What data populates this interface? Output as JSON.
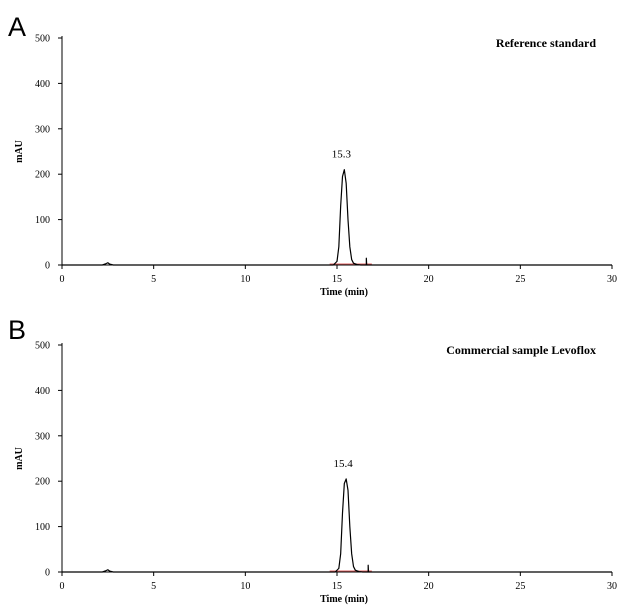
{
  "colors": {
    "trace": "#000000",
    "baseline": "#e06060",
    "axis": "#000000"
  },
  "panels": [
    {
      "letter": "A"
    },
    {
      "letter": "B"
    }
  ],
  "chart_data": [
    {
      "type": "line",
      "panel": "A",
      "title": "Reference standard",
      "xlabel": "Time (min)",
      "ylabel": "mAU",
      "xlim": [
        0,
        30
      ],
      "ylim": [
        0,
        500
      ],
      "xticks": [
        0,
        5,
        10,
        15,
        20,
        25,
        30
      ],
      "yticks": [
        0,
        100,
        200,
        300,
        400,
        500
      ],
      "peak_label": "15.3",
      "series": [
        {
          "x": [
            0,
            2.2,
            2.4,
            2.5,
            2.6,
            2.8,
            14.8,
            15.0,
            15.1,
            15.2,
            15.3,
            15.4,
            15.5,
            15.6,
            15.7,
            15.8,
            15.9,
            16.1,
            16.3,
            16.6,
            16.6,
            16.62,
            30
          ],
          "values": [
            0,
            0,
            3,
            5,
            2,
            0,
            0,
            8,
            40,
            130,
            195,
            210,
            180,
            100,
            40,
            12,
            4,
            1,
            0,
            0,
            15,
            0,
            0
          ]
        }
      ]
    },
    {
      "type": "line",
      "panel": "B",
      "title": "Commercial sample Levoflox",
      "xlabel": "Time (min)",
      "ylabel": "mAU",
      "xlim": [
        0,
        30
      ],
      "ylim": [
        0,
        500
      ],
      "xticks": [
        0,
        5,
        10,
        15,
        20,
        25,
        30
      ],
      "yticks": [
        0,
        100,
        200,
        300,
        400,
        500
      ],
      "peak_label": "15.4",
      "series": [
        {
          "x": [
            0,
            2.2,
            2.4,
            2.5,
            2.6,
            2.8,
            14.9,
            15.1,
            15.2,
            15.3,
            15.4,
            15.5,
            15.6,
            15.7,
            15.8,
            15.9,
            16.0,
            16.2,
            16.4,
            16.7,
            16.7,
            16.72,
            30
          ],
          "values": [
            0,
            0,
            3,
            5,
            2,
            0,
            0,
            8,
            40,
            130,
            195,
            205,
            180,
            100,
            40,
            12,
            4,
            1,
            0,
            0,
            15,
            0,
            0
          ]
        }
      ]
    }
  ]
}
